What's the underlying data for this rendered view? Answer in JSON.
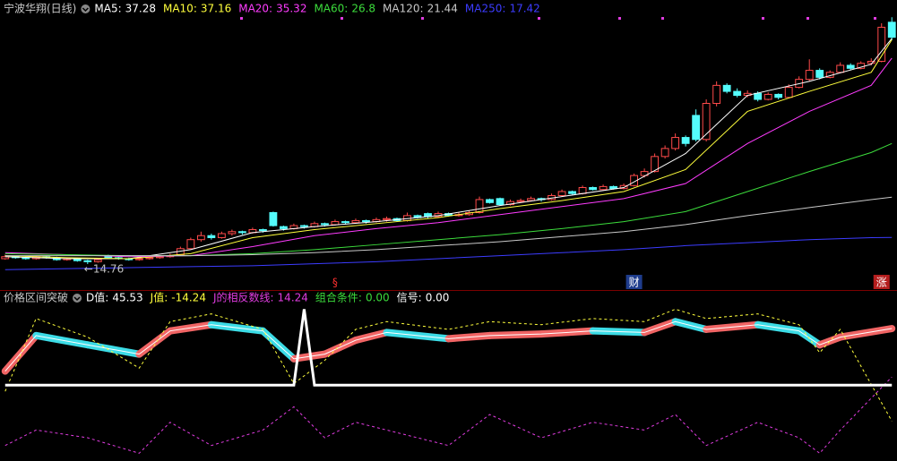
{
  "chart_data": [
    {
      "type": "candlestick",
      "title": "宁波华翔(日线)",
      "up_color": "#ff4a4a",
      "down_color": "#54fcfc",
      "xlim": [
        -0.5,
        86.5
      ],
      "ylim": [
        12.35,
        41.12
      ],
      "ohlc": [
        [
          15.3,
          15.7,
          15.2,
          15.5
        ],
        [
          15.5,
          15.6,
          15.3,
          15.4
        ],
        [
          15.4,
          15.5,
          15.2,
          15.3
        ],
        [
          15.3,
          15.6,
          15.2,
          15.5
        ],
        [
          15.5,
          15.6,
          15.3,
          15.4
        ],
        [
          15.4,
          15.5,
          15.1,
          15.2
        ],
        [
          15.2,
          15.4,
          15.1,
          15.3
        ],
        [
          15.3,
          15.4,
          15.0,
          15.1
        ],
        [
          15.1,
          15.2,
          14.76,
          15.0
        ],
        [
          15.0,
          15.3,
          14.9,
          15.2
        ],
        [
          15.6,
          15.7,
          15.3,
          15.4
        ],
        [
          15.4,
          15.5,
          15.2,
          15.3
        ],
        [
          15.3,
          15.4,
          15.1,
          15.2
        ],
        [
          15.2,
          15.4,
          15.1,
          15.3
        ],
        [
          15.3,
          15.5,
          15.2,
          15.4
        ],
        [
          15.4,
          15.6,
          15.3,
          15.5
        ],
        [
          15.5,
          15.8,
          15.4,
          15.6
        ],
        [
          15.7,
          16.5,
          15.6,
          16.3
        ],
        [
          16.3,
          17.4,
          16.2,
          17.2
        ],
        [
          17.2,
          18.0,
          17.0,
          17.6
        ],
        [
          17.6,
          17.8,
          17.2,
          17.4
        ],
        [
          17.4,
          18.0,
          17.3,
          17.8
        ],
        [
          17.8,
          18.2,
          17.6,
          18.0
        ],
        [
          18.0,
          18.1,
          17.7,
          17.9
        ],
        [
          17.9,
          18.4,
          17.8,
          18.2
        ],
        [
          18.2,
          18.3,
          17.9,
          18.1
        ],
        [
          19.9,
          20.0,
          18.5,
          18.6
        ],
        [
          18.5,
          18.6,
          18.1,
          18.3
        ],
        [
          18.3,
          18.8,
          18.2,
          18.6
        ],
        [
          18.6,
          18.7,
          18.3,
          18.5
        ],
        [
          18.5,
          19.0,
          18.4,
          18.8
        ],
        [
          18.8,
          18.9,
          18.5,
          18.7
        ],
        [
          18.7,
          19.2,
          18.6,
          19.0
        ],
        [
          19.0,
          19.1,
          18.7,
          18.9
        ],
        [
          18.9,
          19.3,
          18.8,
          19.1
        ],
        [
          19.1,
          19.2,
          18.8,
          19.0
        ],
        [
          19.0,
          19.4,
          18.9,
          19.2
        ],
        [
          19.2,
          19.5,
          19.0,
          19.3
        ],
        [
          19.3,
          19.4,
          19.0,
          19.1
        ],
        [
          19.1,
          19.9,
          19.0,
          19.6
        ],
        [
          19.6,
          19.7,
          19.3,
          19.4
        ],
        [
          19.8,
          19.9,
          19.3,
          19.5
        ],
        [
          19.5,
          20.0,
          19.4,
          19.8
        ],
        [
          19.8,
          19.9,
          19.5,
          19.6
        ],
        [
          19.6,
          19.9,
          19.5,
          19.7
        ],
        [
          19.7,
          20.1,
          19.6,
          19.9
        ],
        [
          19.9,
          21.5,
          19.8,
          21.2
        ],
        [
          21.2,
          21.3,
          20.8,
          20.9
        ],
        [
          21.3,
          21.4,
          20.6,
          20.7
        ],
        [
          20.7,
          21.2,
          20.6,
          21.0
        ],
        [
          21.0,
          21.3,
          20.9,
          21.1
        ],
        [
          21.1,
          21.5,
          21.0,
          21.3
        ],
        [
          21.3,
          21.4,
          21.0,
          21.2
        ],
        [
          21.2,
          21.8,
          21.1,
          21.6
        ],
        [
          21.6,
          22.2,
          21.5,
          22.0
        ],
        [
          22.0,
          22.1,
          21.7,
          21.8
        ],
        [
          21.8,
          22.6,
          21.7,
          22.4
        ],
        [
          22.4,
          22.5,
          22.1,
          22.2
        ],
        [
          22.2,
          22.7,
          22.1,
          22.5
        ],
        [
          22.5,
          22.6,
          22.2,
          22.3
        ],
        [
          22.3,
          22.8,
          22.2,
          22.6
        ],
        [
          22.6,
          23.8,
          22.5,
          23.6
        ],
        [
          23.6,
          24.3,
          23.4,
          24.0
        ],
        [
          24.0,
          25.8,
          23.9,
          25.5
        ],
        [
          25.5,
          26.6,
          25.3,
          26.3
        ],
        [
          26.3,
          27.8,
          26.1,
          27.4
        ],
        [
          27.4,
          27.6,
          26.5,
          26.8
        ],
        [
          29.6,
          30.2,
          27.0,
          27.2
        ],
        [
          27.2,
          31.2,
          27.0,
          30.8
        ],
        [
          30.8,
          33.0,
          30.5,
          32.6
        ],
        [
          32.6,
          32.8,
          31.8,
          32.0
        ],
        [
          32.0,
          32.3,
          31.4,
          31.6
        ],
        [
          31.6,
          32.1,
          31.4,
          31.8
        ],
        [
          31.8,
          32.0,
          31.0,
          31.2
        ],
        [
          31.2,
          31.9,
          31.1,
          31.7
        ],
        [
          31.7,
          31.8,
          31.2,
          31.4
        ],
        [
          31.4,
          32.7,
          31.3,
          32.4
        ],
        [
          32.4,
          33.5,
          32.3,
          33.2
        ],
        [
          33.2,
          35.2,
          33.0,
          34.1
        ],
        [
          34.1,
          34.3,
          33.2,
          33.4
        ],
        [
          33.4,
          34.1,
          33.3,
          33.9
        ],
        [
          33.9,
          34.9,
          33.8,
          34.6
        ],
        [
          34.6,
          34.8,
          34.1,
          34.3
        ],
        [
          34.3,
          35.0,
          34.2,
          34.8
        ],
        [
          34.8,
          35.3,
          34.6,
          35.0
        ],
        [
          35.0,
          38.8,
          34.9,
          38.4
        ],
        [
          38.9,
          39.4,
          37.1,
          37.4
        ]
      ],
      "series": [
        {
          "name": "MA5:",
          "color": "#ffffff",
          "x": [
            0,
            6,
            12,
            18,
            24,
            30,
            36,
            42,
            48,
            54,
            60,
            66,
            72,
            78,
            84,
            86
          ],
          "values": [
            15.5,
            15.3,
            15.3,
            16.2,
            17.9,
            18.5,
            19.0,
            19.6,
            20.6,
            21.5,
            22.4,
            25.8,
            31.6,
            33.0,
            34.7,
            37.28
          ]
        },
        {
          "name": "MA10:",
          "color": "#ffff3c",
          "x": [
            0,
            6,
            12,
            18,
            24,
            30,
            36,
            42,
            48,
            54,
            60,
            66,
            72,
            78,
            84,
            86
          ],
          "values": [
            15.6,
            15.4,
            15.3,
            15.8,
            17.4,
            18.2,
            18.8,
            19.4,
            20.3,
            21.1,
            22.0,
            24.2,
            30.0,
            32.0,
            33.9,
            37.16
          ]
        },
        {
          "name": "MA20:",
          "color": "#ff3cff",
          "x": [
            0,
            6,
            12,
            18,
            24,
            30,
            36,
            42,
            48,
            54,
            60,
            66,
            72,
            78,
            84,
            86
          ],
          "values": [
            15.9,
            15.7,
            15.5,
            15.6,
            16.5,
            17.6,
            18.3,
            18.9,
            19.7,
            20.5,
            21.3,
            22.8,
            26.8,
            30.0,
            32.6,
            35.32
          ]
        },
        {
          "name": "MA60:",
          "color": "#3cdc3c",
          "x": [
            0,
            6,
            12,
            18,
            24,
            30,
            36,
            42,
            48,
            54,
            60,
            66,
            72,
            78,
            84,
            86
          ],
          "values": [
            15.8,
            15.7,
            15.6,
            15.6,
            15.8,
            16.2,
            16.7,
            17.2,
            17.7,
            18.3,
            19.0,
            20.0,
            22.0,
            24.0,
            25.9,
            26.8
          ]
        },
        {
          "name": "MA120:",
          "color": "#c8c8c8",
          "x": [
            0,
            6,
            12,
            18,
            24,
            30,
            36,
            42,
            48,
            54,
            60,
            66,
            72,
            78,
            84,
            86
          ],
          "values": [
            15.6,
            15.6,
            15.6,
            15.6,
            15.7,
            15.9,
            16.2,
            16.6,
            17.0,
            17.5,
            18.0,
            18.7,
            19.6,
            20.4,
            21.2,
            21.44
          ]
        },
        {
          "name": "MA250:",
          "color": "#3c3cff",
          "x": [
            0,
            6,
            12,
            18,
            24,
            30,
            36,
            42,
            48,
            54,
            60,
            66,
            72,
            78,
            84,
            86
          ],
          "values": [
            14.2,
            14.3,
            14.4,
            14.5,
            14.6,
            14.8,
            15.0,
            15.3,
            15.6,
            15.9,
            16.2,
            16.6,
            16.9,
            17.2,
            17.4,
            17.42
          ]
        }
      ],
      "annotations": [
        {
          "label": "←14.76",
          "value": 14.76,
          "x": 8,
          "color": "#c0c0c0"
        },
        {
          "label": "§",
          "x": 32,
          "color": "#ff3030"
        },
        {
          "label": "财",
          "x": 61,
          "color": "#ffffff",
          "box": "#1e3c8c"
        },
        {
          "label": "涨",
          "x": 85,
          "color": "#ffffff",
          "box": "#b41e1e"
        }
      ]
    },
    {
      "type": "indicator",
      "title": "价格区间突破",
      "xlim": [
        -0.5,
        86.5
      ],
      "ylim": [
        -40,
        60
      ],
      "y2lim": [
        -1,
        1.04
      ],
      "up_color": "#f06464",
      "down_color": "#3cdce6",
      "series": [
        {
          "name": "D值:",
          "color": "#ffffff",
          "x": [
            0,
            3,
            8,
            13,
            16,
            20,
            25,
            28,
            31,
            34,
            37,
            43,
            47,
            52,
            57,
            62,
            65,
            68,
            73,
            77,
            79,
            81,
            86
          ],
          "values": [
            18,
            41,
            35,
            29,
            44,
            48,
            44,
            26,
            29,
            38,
            43,
            39,
            41,
            42,
            44,
            43,
            50,
            45,
            48,
            44,
            35,
            40,
            45.53
          ]
        },
        {
          "name": "J值:",
          "color": "#ffff3c",
          "dashed": true,
          "x": [
            0,
            3,
            8,
            13,
            16,
            20,
            25,
            28,
            31,
            34,
            37,
            43,
            47,
            52,
            57,
            62,
            65,
            68,
            73,
            77,
            79,
            81,
            86
          ],
          "values": [
            5,
            52,
            40,
            20,
            50,
            55,
            45,
            10,
            25,
            45,
            50,
            45,
            50,
            48,
            52,
            50,
            58,
            52,
            55,
            48,
            30,
            45,
            -14.24
          ]
        },
        {
          "name": "J的相反数线:",
          "color": "#e03ce0",
          "dashed": true,
          "x": [
            0,
            3,
            8,
            13,
            16,
            20,
            25,
            28,
            31,
            34,
            37,
            43,
            47,
            52,
            57,
            62,
            65,
            68,
            73,
            77,
            79,
            81,
            86
          ],
          "values": [
            -30,
            -20,
            -25,
            -35,
            -15,
            -30,
            -20,
            -5,
            -25,
            -15,
            -20,
            -30,
            -10,
            -25,
            -15,
            -20,
            -10,
            -30,
            -15,
            -25,
            -35,
            -20,
            14.24
          ]
        },
        {
          "name": "信号:",
          "color": "#ffffff",
          "axis": "y2",
          "x": [
            0,
            28,
            29,
            30,
            86
          ],
          "values": [
            0,
            0,
            1,
            0,
            0
          ]
        }
      ],
      "legend": [
        {
          "label": "D值:",
          "value": 45.53,
          "color": "#ffffff"
        },
        {
          "label": "J值:",
          "value": -14.24,
          "color": "#ffff3c"
        },
        {
          "label": "J的相反数线:",
          "value": 14.24,
          "color": "#e03ce0"
        },
        {
          "label": "组合条件:",
          "value": 0,
          "value_label": "0.00",
          "color": "#3cdc3c"
        },
        {
          "label": "信号:",
          "value": 0,
          "value_label": "0.00",
          "color": "#ffffff"
        }
      ]
    }
  ]
}
